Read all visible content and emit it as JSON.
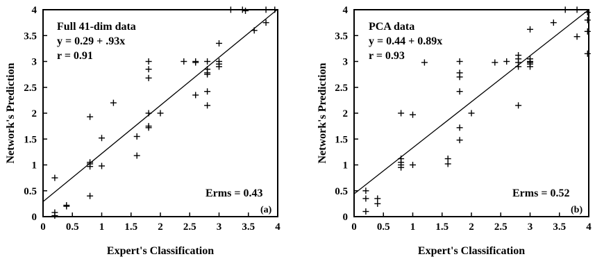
{
  "chart_data": [
    {
      "type": "scatter",
      "panel_label": "(a)",
      "xlabel": "Expert's Classification",
      "ylabel": "Network's Prediction",
      "xlim": [
        0,
        4
      ],
      "ylim": [
        0,
        4
      ],
      "xticks": [
        {
          "value": 0,
          "label": "0"
        },
        {
          "value": 0.5,
          "label": "0.5"
        },
        {
          "value": 1,
          "label": "1"
        },
        {
          "value": 1.5,
          "label": "1.5"
        },
        {
          "value": 2,
          "label": "2"
        },
        {
          "value": 2.5,
          "label": "2.5"
        },
        {
          "value": 3,
          "label": "3"
        },
        {
          "value": 3.5,
          "label": "3.5"
        },
        {
          "value": 4,
          "label": "4"
        }
      ],
      "yticks": [
        {
          "value": 0,
          "label": "0"
        },
        {
          "value": 0.5,
          "label": "0.5"
        },
        {
          "value": 1,
          "label": "1"
        },
        {
          "value": 1.5,
          "label": "1.5"
        },
        {
          "value": 2,
          "label": "2"
        },
        {
          "value": 2.5,
          "label": "2.5"
        },
        {
          "value": 3,
          "label": "3"
        },
        {
          "value": 3.5,
          "label": "3.5"
        },
        {
          "value": 4,
          "label": "4"
        }
      ],
      "annotations": [
        "Full 41-dim data",
        "y = 0.29 + .93x",
        "r = 0.91"
      ],
      "erms": "Erms = 0.43",
      "fit_line": {
        "intercept": 0.29,
        "slope": 0.93
      },
      "points": [
        {
          "x": 0.2,
          "y": 0.75
        },
        {
          "x": 0.2,
          "y": 0.08
        },
        {
          "x": 0.2,
          "y": 0.02
        },
        {
          "x": 0.4,
          "y": 0.22
        },
        {
          "x": 0.4,
          "y": 0.2
        },
        {
          "x": 0.8,
          "y": 1.93
        },
        {
          "x": 0.8,
          "y": 1.05
        },
        {
          "x": 0.8,
          "y": 1.02
        },
        {
          "x": 0.8,
          "y": 0.97
        },
        {
          "x": 0.8,
          "y": 0.4
        },
        {
          "x": 1.0,
          "y": 1.52
        },
        {
          "x": 1.0,
          "y": 0.98
        },
        {
          "x": 1.2,
          "y": 2.2
        },
        {
          "x": 1.6,
          "y": 1.55
        },
        {
          "x": 1.6,
          "y": 1.18
        },
        {
          "x": 1.8,
          "y": 3.0
        },
        {
          "x": 1.8,
          "y": 2.85
        },
        {
          "x": 1.8,
          "y": 2.68
        },
        {
          "x": 1.8,
          "y": 2.0
        },
        {
          "x": 1.8,
          "y": 1.75
        },
        {
          "x": 1.8,
          "y": 1.72
        },
        {
          "x": 2.0,
          "y": 2.0
        },
        {
          "x": 2.4,
          "y": 3.0
        },
        {
          "x": 2.6,
          "y": 3.0
        },
        {
          "x": 2.6,
          "y": 2.98
        },
        {
          "x": 2.6,
          "y": 2.35
        },
        {
          "x": 2.8,
          "y": 3.0
        },
        {
          "x": 2.8,
          "y": 2.85
        },
        {
          "x": 2.8,
          "y": 2.78
        },
        {
          "x": 2.8,
          "y": 2.75
        },
        {
          "x": 2.8,
          "y": 2.42
        },
        {
          "x": 2.8,
          "y": 2.15
        },
        {
          "x": 3.0,
          "y": 3.35
        },
        {
          "x": 3.0,
          "y": 3.0
        },
        {
          "x": 3.0,
          "y": 2.95
        },
        {
          "x": 3.0,
          "y": 2.9
        },
        {
          "x": 3.2,
          "y": 4.0
        },
        {
          "x": 3.4,
          "y": 4.0
        },
        {
          "x": 3.45,
          "y": 3.98
        },
        {
          "x": 3.6,
          "y": 3.6
        },
        {
          "x": 3.8,
          "y": 4.0
        },
        {
          "x": 3.8,
          "y": 3.75
        },
        {
          "x": 3.95,
          "y": 4.0
        }
      ]
    },
    {
      "type": "scatter",
      "panel_label": "(b)",
      "xlabel": "Expert's Classification",
      "ylabel": "Network's Prediction",
      "xlim": [
        0,
        4
      ],
      "ylim": [
        0,
        4
      ],
      "xticks": [
        {
          "value": 0,
          "label": "0"
        },
        {
          "value": 0.5,
          "label": "0.5"
        },
        {
          "value": 1,
          "label": "1"
        },
        {
          "value": 1.5,
          "label": "1.5"
        },
        {
          "value": 2,
          "label": "2"
        },
        {
          "value": 2.5,
          "label": "2.5"
        },
        {
          "value": 3,
          "label": "3"
        },
        {
          "value": 3.5,
          "label": "3.5"
        },
        {
          "value": 4,
          "label": "4"
        }
      ],
      "yticks": [
        {
          "value": 0,
          "label": "0"
        },
        {
          "value": 0.5,
          "label": "0.5"
        },
        {
          "value": 1,
          "label": "1"
        },
        {
          "value": 1.5,
          "label": "1.5"
        },
        {
          "value": 2,
          "label": "2"
        },
        {
          "value": 2.5,
          "label": "2.5"
        },
        {
          "value": 3,
          "label": "3"
        },
        {
          "value": 3.5,
          "label": "3.5"
        },
        {
          "value": 4,
          "label": "4"
        }
      ],
      "annotations": [
        "PCA data",
        "y = 0.44 + 0.89x",
        "r = 0.93"
      ],
      "erms": "Erms = 0.52",
      "fit_line": {
        "intercept": 0.44,
        "slope": 0.89
      },
      "points": [
        {
          "x": 0.2,
          "y": 0.5
        },
        {
          "x": 0.2,
          "y": 0.35
        },
        {
          "x": 0.2,
          "y": 0.1
        },
        {
          "x": 0.4,
          "y": 0.35
        },
        {
          "x": 0.4,
          "y": 0.25
        },
        {
          "x": 0.8,
          "y": 2.0
        },
        {
          "x": 0.8,
          "y": 1.12
        },
        {
          "x": 0.8,
          "y": 1.05
        },
        {
          "x": 0.8,
          "y": 1.0
        },
        {
          "x": 0.8,
          "y": 0.95
        },
        {
          "x": 1.0,
          "y": 1.97
        },
        {
          "x": 1.0,
          "y": 1.0
        },
        {
          "x": 1.2,
          "y": 2.98
        },
        {
          "x": 1.6,
          "y": 1.12
        },
        {
          "x": 1.6,
          "y": 1.02
        },
        {
          "x": 1.8,
          "y": 3.0
        },
        {
          "x": 1.8,
          "y": 2.78
        },
        {
          "x": 1.8,
          "y": 2.7
        },
        {
          "x": 1.8,
          "y": 2.42
        },
        {
          "x": 1.8,
          "y": 1.72
        },
        {
          "x": 1.8,
          "y": 1.48
        },
        {
          "x": 2.0,
          "y": 2.0
        },
        {
          "x": 2.4,
          "y": 2.98
        },
        {
          "x": 2.6,
          "y": 3.0
        },
        {
          "x": 2.8,
          "y": 3.12
        },
        {
          "x": 2.8,
          "y": 3.05
        },
        {
          "x": 2.8,
          "y": 2.98
        },
        {
          "x": 2.8,
          "y": 2.9
        },
        {
          "x": 2.8,
          "y": 2.15
        },
        {
          "x": 3.0,
          "y": 3.62
        },
        {
          "x": 3.0,
          "y": 3.05
        },
        {
          "x": 3.0,
          "y": 3.0
        },
        {
          "x": 3.0,
          "y": 2.98
        },
        {
          "x": 3.0,
          "y": 2.95
        },
        {
          "x": 3.0,
          "y": 2.9
        },
        {
          "x": 3.4,
          "y": 3.75
        },
        {
          "x": 3.6,
          "y": 4.0
        },
        {
          "x": 3.8,
          "y": 4.0
        },
        {
          "x": 3.8,
          "y": 3.48
        },
        {
          "x": 3.98,
          "y": 3.95
        },
        {
          "x": 3.98,
          "y": 3.8
        },
        {
          "x": 3.98,
          "y": 3.58
        },
        {
          "x": 3.98,
          "y": 3.15
        }
      ]
    }
  ]
}
